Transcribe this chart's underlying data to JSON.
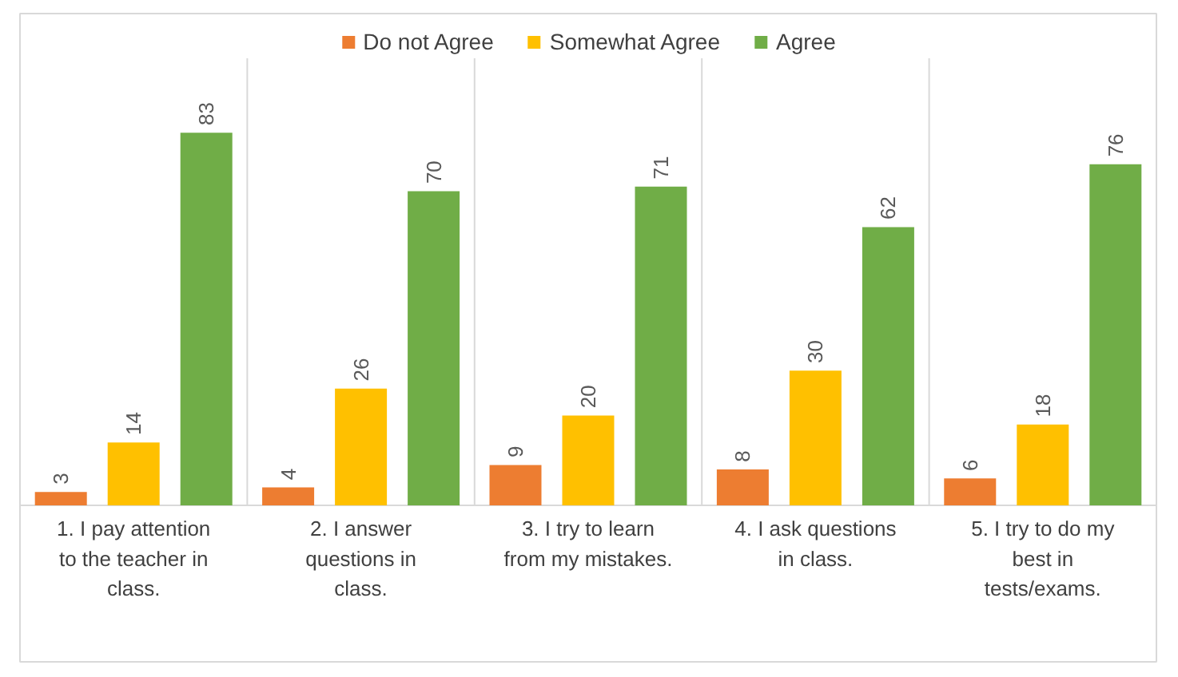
{
  "chart_data": {
    "type": "bar",
    "categories": [
      "1. I pay attention to the teacher in class.",
      "2. I answer questions in class.",
      "3. I try to learn from my mistakes.",
      "4. I ask questions in class.",
      "5. I try to do my best in tests/exams."
    ],
    "series": [
      {
        "name": "Do not Agree",
        "color": "#ed7d31",
        "values": [
          3,
          4,
          9,
          8,
          6
        ]
      },
      {
        "name": "Somewhat Agree",
        "color": "#ffc000",
        "values": [
          14,
          26,
          20,
          30,
          18
        ]
      },
      {
        "name": "Agree",
        "color": "#70ad47",
        "values": [
          83,
          70,
          71,
          62,
          76
        ]
      }
    ],
    "data_labels": true,
    "legend": "top",
    "grid": "x"
  }
}
